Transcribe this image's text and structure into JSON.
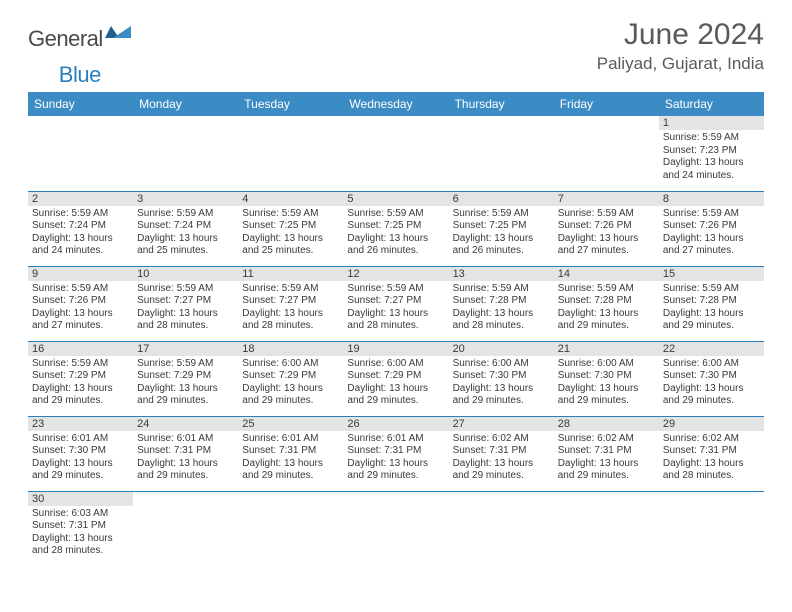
{
  "logo": {
    "part1": "General",
    "part2": "Blue"
  },
  "title": "June 2024",
  "location": "Paliyad, Gujarat, India",
  "colors": {
    "header_bg": "#3b8bc4",
    "header_text": "#ffffff",
    "daynum_bg": "#e4e4e4",
    "border": "#2a7fbf",
    "text": "#3a3a3a",
    "logo_gray": "#4a4a4a",
    "logo_blue": "#2a7fbf"
  },
  "weekdays": [
    "Sunday",
    "Monday",
    "Tuesday",
    "Wednesday",
    "Thursday",
    "Friday",
    "Saturday"
  ],
  "weeks": [
    [
      null,
      null,
      null,
      null,
      null,
      null,
      {
        "n": "1",
        "sr": "Sunrise: 5:59 AM",
        "ss": "Sunset: 7:23 PM",
        "d1": "Daylight: 13 hours",
        "d2": "and 24 minutes."
      }
    ],
    [
      {
        "n": "2",
        "sr": "Sunrise: 5:59 AM",
        "ss": "Sunset: 7:24 PM",
        "d1": "Daylight: 13 hours",
        "d2": "and 24 minutes."
      },
      {
        "n": "3",
        "sr": "Sunrise: 5:59 AM",
        "ss": "Sunset: 7:24 PM",
        "d1": "Daylight: 13 hours",
        "d2": "and 25 minutes."
      },
      {
        "n": "4",
        "sr": "Sunrise: 5:59 AM",
        "ss": "Sunset: 7:25 PM",
        "d1": "Daylight: 13 hours",
        "d2": "and 25 minutes."
      },
      {
        "n": "5",
        "sr": "Sunrise: 5:59 AM",
        "ss": "Sunset: 7:25 PM",
        "d1": "Daylight: 13 hours",
        "d2": "and 26 minutes."
      },
      {
        "n": "6",
        "sr": "Sunrise: 5:59 AM",
        "ss": "Sunset: 7:25 PM",
        "d1": "Daylight: 13 hours",
        "d2": "and 26 minutes."
      },
      {
        "n": "7",
        "sr": "Sunrise: 5:59 AM",
        "ss": "Sunset: 7:26 PM",
        "d1": "Daylight: 13 hours",
        "d2": "and 27 minutes."
      },
      {
        "n": "8",
        "sr": "Sunrise: 5:59 AM",
        "ss": "Sunset: 7:26 PM",
        "d1": "Daylight: 13 hours",
        "d2": "and 27 minutes."
      }
    ],
    [
      {
        "n": "9",
        "sr": "Sunrise: 5:59 AM",
        "ss": "Sunset: 7:26 PM",
        "d1": "Daylight: 13 hours",
        "d2": "and 27 minutes."
      },
      {
        "n": "10",
        "sr": "Sunrise: 5:59 AM",
        "ss": "Sunset: 7:27 PM",
        "d1": "Daylight: 13 hours",
        "d2": "and 28 minutes."
      },
      {
        "n": "11",
        "sr": "Sunrise: 5:59 AM",
        "ss": "Sunset: 7:27 PM",
        "d1": "Daylight: 13 hours",
        "d2": "and 28 minutes."
      },
      {
        "n": "12",
        "sr": "Sunrise: 5:59 AM",
        "ss": "Sunset: 7:27 PM",
        "d1": "Daylight: 13 hours",
        "d2": "and 28 minutes."
      },
      {
        "n": "13",
        "sr": "Sunrise: 5:59 AM",
        "ss": "Sunset: 7:28 PM",
        "d1": "Daylight: 13 hours",
        "d2": "and 28 minutes."
      },
      {
        "n": "14",
        "sr": "Sunrise: 5:59 AM",
        "ss": "Sunset: 7:28 PM",
        "d1": "Daylight: 13 hours",
        "d2": "and 29 minutes."
      },
      {
        "n": "15",
        "sr": "Sunrise: 5:59 AM",
        "ss": "Sunset: 7:28 PM",
        "d1": "Daylight: 13 hours",
        "d2": "and 29 minutes."
      }
    ],
    [
      {
        "n": "16",
        "sr": "Sunrise: 5:59 AM",
        "ss": "Sunset: 7:29 PM",
        "d1": "Daylight: 13 hours",
        "d2": "and 29 minutes."
      },
      {
        "n": "17",
        "sr": "Sunrise: 5:59 AM",
        "ss": "Sunset: 7:29 PM",
        "d1": "Daylight: 13 hours",
        "d2": "and 29 minutes."
      },
      {
        "n": "18",
        "sr": "Sunrise: 6:00 AM",
        "ss": "Sunset: 7:29 PM",
        "d1": "Daylight: 13 hours",
        "d2": "and 29 minutes."
      },
      {
        "n": "19",
        "sr": "Sunrise: 6:00 AM",
        "ss": "Sunset: 7:29 PM",
        "d1": "Daylight: 13 hours",
        "d2": "and 29 minutes."
      },
      {
        "n": "20",
        "sr": "Sunrise: 6:00 AM",
        "ss": "Sunset: 7:30 PM",
        "d1": "Daylight: 13 hours",
        "d2": "and 29 minutes."
      },
      {
        "n": "21",
        "sr": "Sunrise: 6:00 AM",
        "ss": "Sunset: 7:30 PM",
        "d1": "Daylight: 13 hours",
        "d2": "and 29 minutes."
      },
      {
        "n": "22",
        "sr": "Sunrise: 6:00 AM",
        "ss": "Sunset: 7:30 PM",
        "d1": "Daylight: 13 hours",
        "d2": "and 29 minutes."
      }
    ],
    [
      {
        "n": "23",
        "sr": "Sunrise: 6:01 AM",
        "ss": "Sunset: 7:30 PM",
        "d1": "Daylight: 13 hours",
        "d2": "and 29 minutes."
      },
      {
        "n": "24",
        "sr": "Sunrise: 6:01 AM",
        "ss": "Sunset: 7:31 PM",
        "d1": "Daylight: 13 hours",
        "d2": "and 29 minutes."
      },
      {
        "n": "25",
        "sr": "Sunrise: 6:01 AM",
        "ss": "Sunset: 7:31 PM",
        "d1": "Daylight: 13 hours",
        "d2": "and 29 minutes."
      },
      {
        "n": "26",
        "sr": "Sunrise: 6:01 AM",
        "ss": "Sunset: 7:31 PM",
        "d1": "Daylight: 13 hours",
        "d2": "and 29 minutes."
      },
      {
        "n": "27",
        "sr": "Sunrise: 6:02 AM",
        "ss": "Sunset: 7:31 PM",
        "d1": "Daylight: 13 hours",
        "d2": "and 29 minutes."
      },
      {
        "n": "28",
        "sr": "Sunrise: 6:02 AM",
        "ss": "Sunset: 7:31 PM",
        "d1": "Daylight: 13 hours",
        "d2": "and 29 minutes."
      },
      {
        "n": "29",
        "sr": "Sunrise: 6:02 AM",
        "ss": "Sunset: 7:31 PM",
        "d1": "Daylight: 13 hours",
        "d2": "and 28 minutes."
      }
    ],
    [
      {
        "n": "30",
        "sr": "Sunrise: 6:03 AM",
        "ss": "Sunset: 7:31 PM",
        "d1": "Daylight: 13 hours",
        "d2": "and 28 minutes."
      },
      null,
      null,
      null,
      null,
      null,
      null
    ]
  ]
}
